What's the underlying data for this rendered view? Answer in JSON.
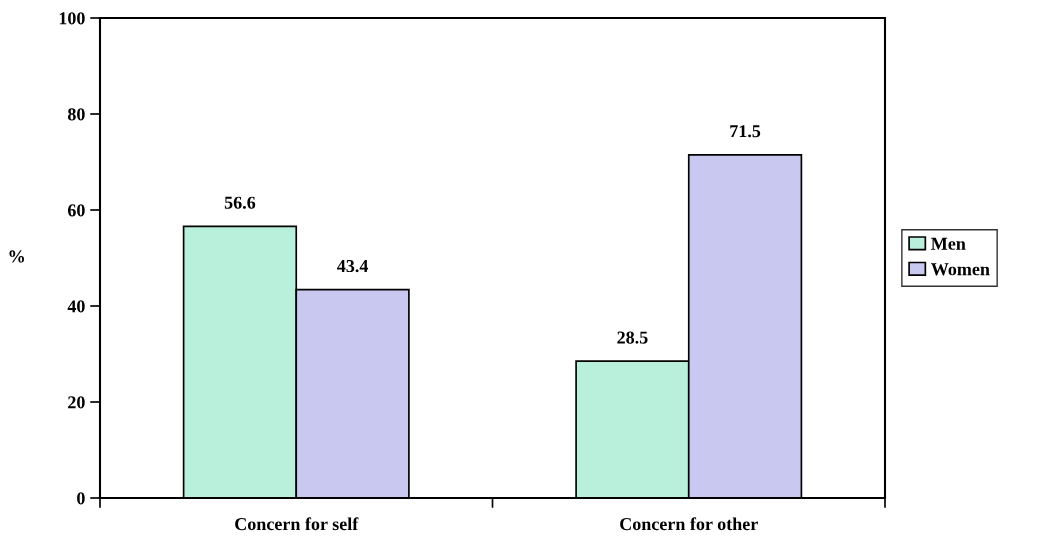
{
  "chart_data": {
    "type": "bar",
    "ylabel": "%",
    "categories": [
      "Concern for self",
      "Concern for other"
    ],
    "series": [
      {
        "name": "Men",
        "color": "#b8f0dc",
        "values": [
          56.6,
          28.5
        ]
      },
      {
        "name": "Women",
        "color": "#c8c8f0",
        "values": [
          43.4,
          71.5
        ]
      }
    ],
    "ylim": [
      0,
      100
    ],
    "yticks": [
      0,
      20,
      40,
      60,
      80,
      100
    ],
    "data_labels": true,
    "legend": "right",
    "grid": false
  }
}
